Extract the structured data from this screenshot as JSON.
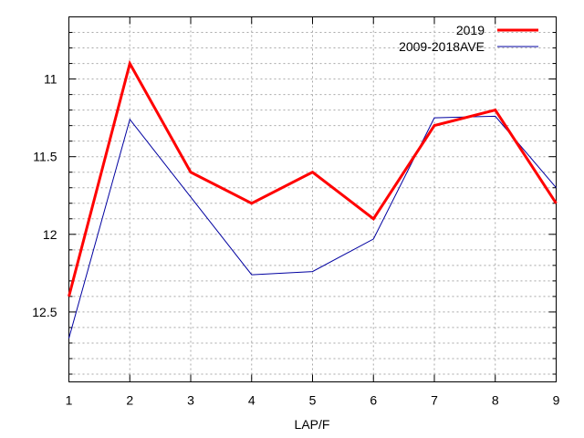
{
  "chart_data": {
    "type": "line",
    "xlabel": "LAP/F",
    "ylabel": "",
    "title": "",
    "x": [
      1,
      2,
      3,
      4,
      5,
      6,
      7,
      8,
      9
    ],
    "xlim": [
      1,
      9
    ],
    "ylim": [
      12.95,
      10.6
    ],
    "y_inverted": true,
    "y_major_ticks": [
      11,
      11.5,
      12,
      12.5
    ],
    "y_tick_labels": [
      "11",
      "11.5",
      "12",
      "12.5"
    ],
    "y_minor_step": 0.1,
    "x_tick_labels": [
      "1",
      "2",
      "3",
      "4",
      "5",
      "6",
      "7",
      "8",
      "9"
    ],
    "grid": true,
    "legend_position": "top-right",
    "series": [
      {
        "name": "2019",
        "color": "#ff0000",
        "values": [
          12.4,
          10.9,
          11.6,
          11.8,
          11.6,
          11.9,
          11.3,
          11.2,
          11.8
        ]
      },
      {
        "name": "2009-2018AVE",
        "color": "#0000a0",
        "values": [
          12.67,
          11.26,
          11.76,
          12.26,
          12.24,
          12.03,
          11.25,
          11.24,
          11.7
        ]
      }
    ]
  }
}
